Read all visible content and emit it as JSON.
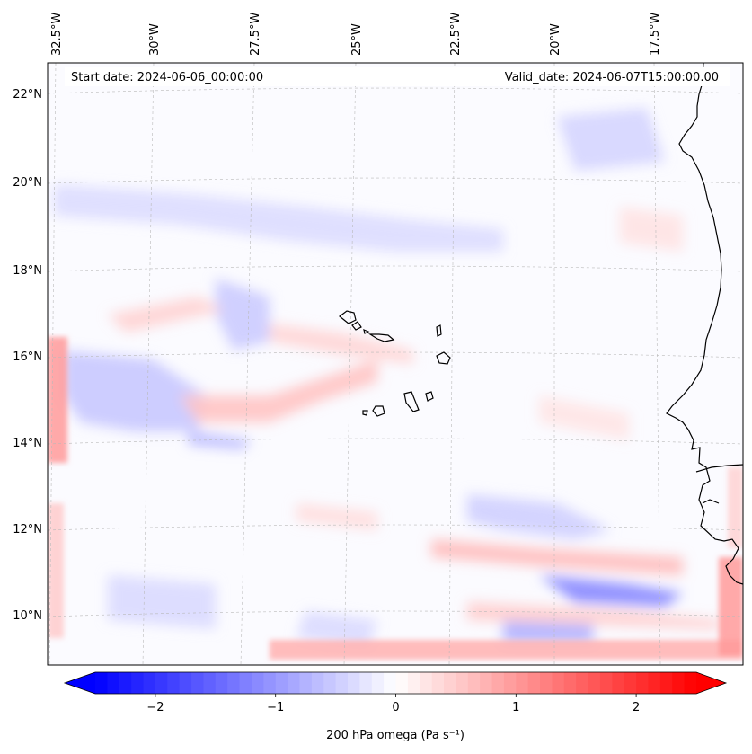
{
  "map": {
    "start_date_label": "Start date: 2024-06-06_00:00:00",
    "valid_date_label": "Valid_date: 2024-06-07T15:00:00.00",
    "longitude_labels": [
      "32.5°W",
      "30°W",
      "27.5°W",
      "25°W",
      "22.5°W",
      "20°W",
      "17.5°W"
    ],
    "latitude_labels": [
      "22°N",
      "20°N",
      "18°N",
      "16°N",
      "14°N",
      "12°N",
      "10°N"
    ],
    "extent": {
      "lon_min": -33.0,
      "lon_max": -15.6,
      "lat_min": 8.9,
      "lat_max": 22.7
    },
    "gridlines": true,
    "field": "200 hPa omega",
    "features": [
      "African coastline",
      "Cape Verde islands"
    ]
  },
  "colorbar": {
    "label": "200 hPa omega (Pa s⁻¹)",
    "ticks": [
      "−2",
      "−1",
      "0",
      "1",
      "2"
    ],
    "tick_values": [
      -2,
      -1,
      0,
      1,
      2
    ],
    "range": [
      -2.5,
      2.5
    ],
    "extend": "both",
    "colormap": "bwr",
    "colors": {
      "min": "#0000ff",
      "mid": "#ffffff",
      "max": "#ff0000"
    }
  }
}
